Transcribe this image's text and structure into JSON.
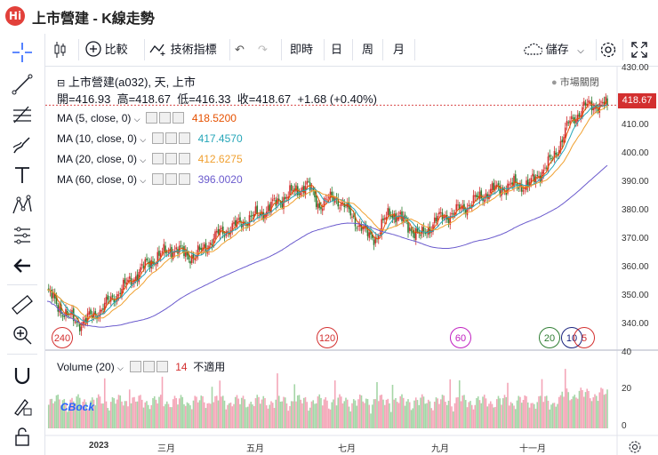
{
  "app": {
    "title": "上市營建 - K線走勢",
    "logo_text": "Hi"
  },
  "toolbar": {
    "compare_label": "比較",
    "indicators_label": "技術指標",
    "realtime_label": "即時",
    "day_label": "日",
    "week_label": "周",
    "month_label": "月",
    "save_label": "儲存"
  },
  "symbol": {
    "title": "上市營建(a032), 天, 上市",
    "open_label": "開=416.93",
    "high_label": "高=418.67",
    "low_label": "低=416.33",
    "close_label": "收=418.67",
    "change_label": "+1.68 (+0.40%)",
    "market_status": "市場關閉",
    "last_price": "418.67"
  },
  "ma": [
    {
      "label": "MA (5, close, 0)",
      "value": "418.5200",
      "color": "#e65100"
    },
    {
      "label": "MA (10, close, 0)",
      "value": "417.4570",
      "color": "#26a6b8"
    },
    {
      "label": "MA (20, close, 0)",
      "value": "412.6275",
      "color": "#f0a030"
    },
    {
      "label": "MA (60, close, 0)",
      "value": "396.0020",
      "color": "#6a5acd"
    }
  ],
  "volume": {
    "label": "Volume (20)",
    "count": "14",
    "status": "不適用",
    "watermark": "CBock"
  },
  "price_axis": [
    "430.00",
    "420.00",
    "410.00",
    "400.00",
    "390.00",
    "380.00",
    "370.00",
    "360.00",
    "350.00",
    "340.00"
  ],
  "volume_axis": [
    "40",
    "20",
    "0"
  ],
  "time_axis": [
    "2023",
    "三月",
    "五月",
    "七月",
    "九月",
    "十一月"
  ],
  "ma_markers": [
    {
      "label": "240",
      "color": "#d32f2f"
    },
    {
      "label": "120",
      "color": "#d32f2f"
    },
    {
      "label": "60",
      "color": "#c020c0"
    },
    {
      "label": "20",
      "color": "#2e7d32"
    },
    {
      "label": "10",
      "color": "#1a237e"
    },
    {
      "label": "5",
      "color": "#d32f2f"
    }
  ],
  "chart_data": {
    "type": "candlestick",
    "ylim": [
      335,
      432
    ],
    "volume_ylim": [
      0,
      42
    ],
    "x_labels": [
      "2023",
      "三月",
      "五月",
      "七月",
      "九月",
      "十一月"
    ],
    "up_color": "#d32f2f",
    "down_color": "#2e7d32",
    "close_anchors": [
      [
        0,
        354
      ],
      [
        12,
        346
      ],
      [
        22,
        343
      ],
      [
        35,
        348
      ],
      [
        50,
        356
      ],
      [
        65,
        364
      ],
      [
        80,
        369
      ],
      [
        95,
        366
      ],
      [
        110,
        374
      ],
      [
        125,
        378
      ],
      [
        140,
        382
      ],
      [
        150,
        386
      ],
      [
        160,
        389
      ],
      [
        167,
        391
      ],
      [
        175,
        384
      ],
      [
        185,
        387
      ],
      [
        195,
        381
      ],
      [
        205,
        374
      ],
      [
        212,
        373
      ],
      [
        220,
        382
      ],
      [
        230,
        378
      ],
      [
        240,
        373
      ],
      [
        250,
        379
      ],
      [
        260,
        381
      ],
      [
        270,
        384
      ],
      [
        285,
        389
      ],
      [
        300,
        391
      ],
      [
        310,
        391
      ],
      [
        318,
        396
      ],
      [
        325,
        400
      ],
      [
        335,
        412
      ],
      [
        345,
        418
      ],
      [
        355,
        419
      ],
      [
        360,
        418.67
      ]
    ],
    "volume_level": 8
  }
}
